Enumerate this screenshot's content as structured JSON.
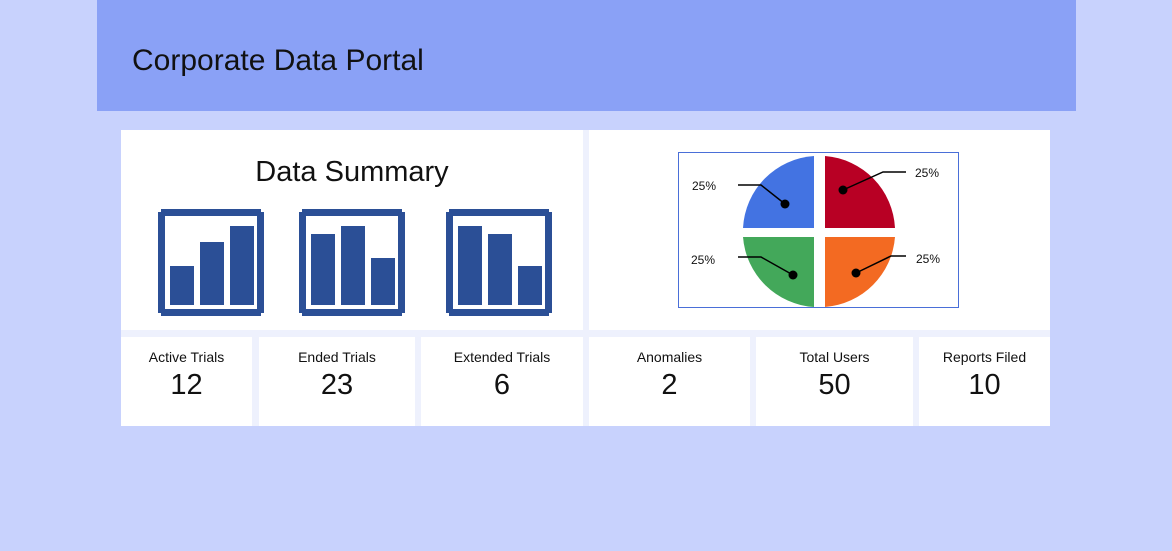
{
  "header": {
    "title": "Corporate Data Portal"
  },
  "summary": {
    "title": "Data Summary",
    "icons": [
      {
        "name": "bar-chart-ascending-icon"
      },
      {
        "name": "bar-chart-middle-peak-icon"
      },
      {
        "name": "bar-chart-descending-icon"
      }
    ],
    "icon_color": "#2b4f96"
  },
  "pie": {
    "labels": [
      "25%",
      "25%",
      "25%",
      "25%"
    ],
    "colors": {
      "top_left": "#4373e2",
      "top_right": "#b80024",
      "bottom_left": "#43a85a",
      "bottom_right": "#f36a22"
    }
  },
  "stats": [
    {
      "label": "Active Trials",
      "value": "12"
    },
    {
      "label": "Ended Trials",
      "value": "23"
    },
    {
      "label": "Extended Trials",
      "value": "6"
    },
    {
      "label": "Anomalies",
      "value": "2"
    },
    {
      "label": "Total Users",
      "value": "50"
    },
    {
      "label": "Reports Filed",
      "value": "10"
    }
  ],
  "colors": {
    "background": "#c8d2fd",
    "header": "#8aa1f6",
    "card": "#ffffff"
  }
}
